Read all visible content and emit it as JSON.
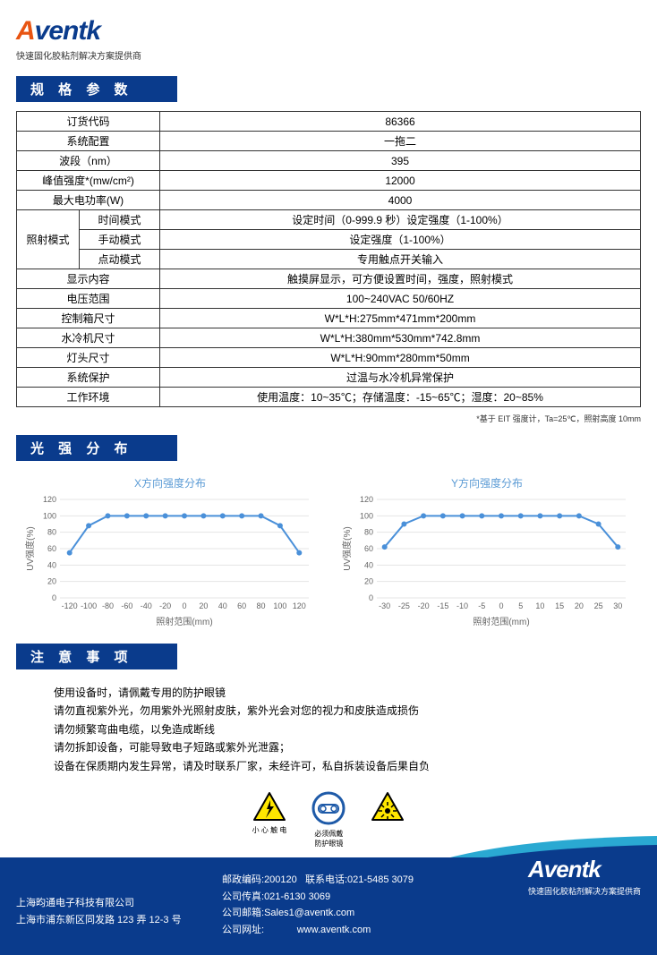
{
  "header": {
    "logo_a": "A",
    "logo_rest": "ventk",
    "tagline": "快速固化胶粘剂解决方案提供商"
  },
  "section1_title": "规 格 参 数",
  "spec_rows": [
    {
      "label": "订货代码",
      "value": "86366"
    },
    {
      "label": "系统配置",
      "value": "一拖二"
    },
    {
      "label": "波段（nm）",
      "value": "395"
    },
    {
      "label": "峰值强度*(mw/cm²)",
      "value": "12000"
    },
    {
      "label": "最大电功率(W)",
      "value": "4000"
    }
  ],
  "mode_group_label": "照射模式",
  "mode_rows": [
    {
      "sub": "时间模式",
      "value": "设定时间（0-999.9 秒）设定强度（1-100%）"
    },
    {
      "sub": "手动模式",
      "value": "设定强度（1-100%）"
    },
    {
      "sub": "点动模式",
      "value": "专用触点开关输入"
    }
  ],
  "spec_rows2": [
    {
      "label": "显示内容",
      "value": "触摸屏显示，可方便设置时间，强度，照射模式"
    },
    {
      "label": "电压范围",
      "value": "100~240VAC     50/60HZ"
    },
    {
      "label": "控制箱尺寸",
      "value": "W*L*H:275mm*471mm*200mm"
    },
    {
      "label": "水冷机尺寸",
      "value": "W*L*H:380mm*530mm*742.8mm"
    },
    {
      "label": "灯头尺寸",
      "value": "W*L*H:90mm*280mm*50mm"
    },
    {
      "label": "系统保护",
      "value": "过温与水冷机异常保护"
    },
    {
      "label": "工作环境",
      "value": "使用温度：10~35℃；存储温度：-15~65℃；湿度：20~85%"
    }
  ],
  "footnote": "*基于 EIT 强度计，Ta=25℃，照射高度 10mm",
  "section2_title": "光 强 分 布",
  "chart_x": {
    "title": "X方向强度分布",
    "xlabel": "照射范围(mm)",
    "ylabel": "UV强度(%)",
    "y_ticks": [
      0,
      20,
      40,
      60,
      80,
      100,
      120
    ],
    "x_ticks": [
      -120,
      -100,
      -80,
      -60,
      -40,
      -20,
      0,
      20,
      40,
      60,
      80,
      100,
      120
    ],
    "x_min": -130,
    "x_max": 130,
    "y_min": 0,
    "y_max": 120,
    "points": [
      {
        "x": -120,
        "y": 55
      },
      {
        "x": -100,
        "y": 88
      },
      {
        "x": -80,
        "y": 100
      },
      {
        "x": -60,
        "y": 100
      },
      {
        "x": -40,
        "y": 100
      },
      {
        "x": -20,
        "y": 100
      },
      {
        "x": 0,
        "y": 100
      },
      {
        "x": 20,
        "y": 100
      },
      {
        "x": 40,
        "y": 100
      },
      {
        "x": 60,
        "y": 100
      },
      {
        "x": 80,
        "y": 100
      },
      {
        "x": 100,
        "y": 88
      },
      {
        "x": 120,
        "y": 55
      }
    ],
    "line_color": "#4a90d9",
    "marker_color": "#4a90d9",
    "grid_color": "#e5e5e5"
  },
  "chart_y": {
    "title": "Y方向强度分布",
    "xlabel": "照射范围(mm)",
    "ylabel": "UV强度(%)",
    "y_ticks": [
      0,
      20,
      40,
      60,
      80,
      100,
      120
    ],
    "x_ticks": [
      -30,
      -25,
      -20,
      -15,
      -10,
      -5,
      0,
      5,
      10,
      15,
      20,
      25,
      30
    ],
    "x_min": -32,
    "x_max": 32,
    "y_min": 0,
    "y_max": 120,
    "points": [
      {
        "x": -30,
        "y": 62
      },
      {
        "x": -25,
        "y": 90
      },
      {
        "x": -20,
        "y": 100
      },
      {
        "x": -15,
        "y": 100
      },
      {
        "x": -10,
        "y": 100
      },
      {
        "x": -5,
        "y": 100
      },
      {
        "x": 0,
        "y": 100
      },
      {
        "x": 5,
        "y": 100
      },
      {
        "x": 10,
        "y": 100
      },
      {
        "x": 15,
        "y": 100
      },
      {
        "x": 20,
        "y": 100
      },
      {
        "x": 25,
        "y": 90
      },
      {
        "x": 30,
        "y": 62
      }
    ],
    "line_color": "#4a90d9",
    "marker_color": "#4a90d9",
    "grid_color": "#e5e5e5"
  },
  "section3_title": "注 意 事 项",
  "notes": [
    "使用设备时，请佩戴专用的防护眼镜",
    "请勿直视紫外光，勿用紫外光照射皮肤，紫外光会对您的视力和皮肤造成损伤",
    "请勿频繁弯曲电缆，以免造成断线",
    "请勿拆卸设备，可能导致电子短路或紫外光泄露；",
    "设备在保质期内发生异常，请及时联系厂家，未经许可，私自拆装设备后果自负"
  ],
  "warn_icons": [
    {
      "label": "小 心 触 电",
      "type": "triangle",
      "stroke": "#000",
      "fill": "#ffe600",
      "icon": "bolt"
    },
    {
      "label": "必须佩戴\n防护眼镜",
      "type": "circle",
      "stroke": "#1e5aa8",
      "fill": "#fff",
      "icon": "goggles"
    },
    {
      "label": "",
      "type": "triangle",
      "stroke": "#000",
      "fill": "#ffe600",
      "icon": "laser"
    }
  ],
  "footer": {
    "company": "上海昀通电子科技有限公司",
    "address": "上海市浦东新区同发路 123 弄 12-3 号",
    "postcode_label": "邮政编码",
    "postcode": "200120",
    "tel_label": "联系电话",
    "tel": "021-5485 3079",
    "fax_label": "公司传真",
    "fax": "021-6130 3069",
    "email_label": "公司邮箱",
    "email": "Sales1@aventk.com",
    "web_label": "公司网址",
    "web": "www.aventk.com",
    "logo_a": "A",
    "logo_rest": "ventk",
    "tag": "快速固化胶粘剂解决方案提供商"
  }
}
